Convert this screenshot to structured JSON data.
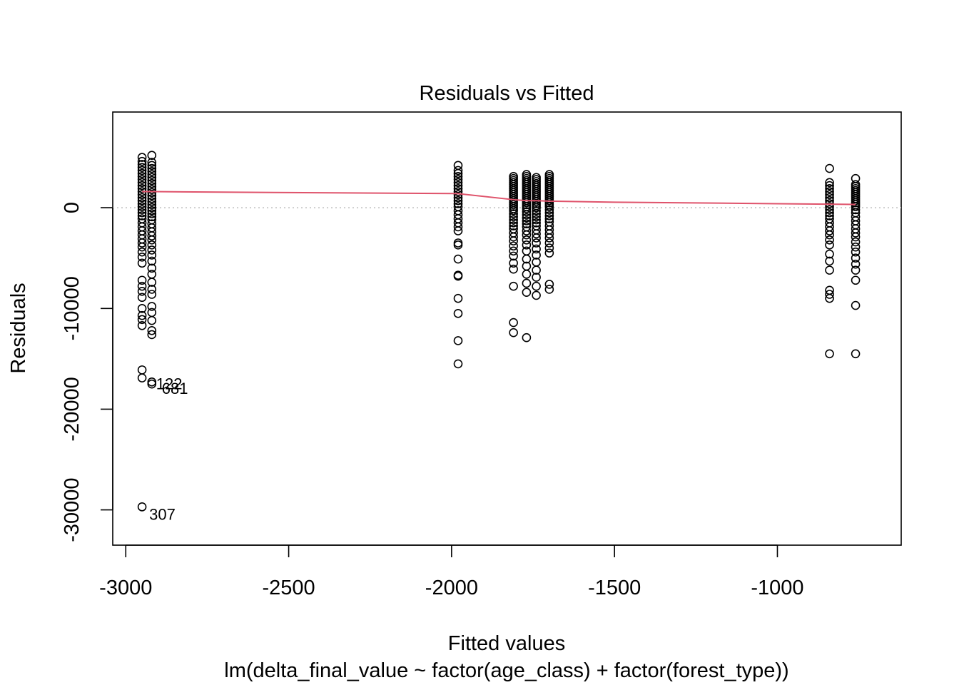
{
  "chart_data": {
    "type": "scatter",
    "title": "Residuals vs Fitted",
    "xlabel": "Fitted values",
    "ylabel": "Residuals",
    "subtitle": "lm(delta_final_value ~ factor(age_class) + factor(forest_type))",
    "xlim": [
      -3040,
      -620
    ],
    "ylim": [
      -33500,
      9500
    ],
    "x_ticks": [
      -3000,
      -2500,
      -2000,
      -1500,
      -1000
    ],
    "x_tick_labels": [
      "-3000",
      "-2500",
      "-2000",
      "-1500",
      "-1000"
    ],
    "y_ticks": [
      -30000,
      -20000,
      -10000,
      0
    ],
    "y_tick_labels": [
      "-30000",
      "-20000",
      "-10000",
      "0"
    ],
    "reference_line": {
      "y": 0,
      "style": "dotted",
      "color": "#bebebe"
    },
    "smoother_color": "#df536b",
    "point_color": "#000000",
    "smoother": [
      {
        "x": -2950,
        "y": 1600
      },
      {
        "x": -2920,
        "y": 1600
      },
      {
        "x": -2500,
        "y": 1500
      },
      {
        "x": -1980,
        "y": 1400
      },
      {
        "x": -1810,
        "y": 800
      },
      {
        "x": -1770,
        "y": 700
      },
      {
        "x": -1740,
        "y": 700
      },
      {
        "x": -1700,
        "y": 650
      },
      {
        "x": -1500,
        "y": 550
      },
      {
        "x": -1000,
        "y": 400
      },
      {
        "x": -840,
        "y": 350
      },
      {
        "x": -760,
        "y": 330
      }
    ],
    "groups": [
      {
        "x": -2950,
        "y": [
          5000,
          4600,
          4300,
          4000,
          3700,
          3400,
          3100,
          2800,
          2500,
          2200,
          1900,
          1600,
          1300,
          1000,
          700,
          400,
          100,
          -200,
          -500,
          -800,
          -1100,
          -1500,
          -1900,
          -2300,
          -2700,
          -3100,
          -3500,
          -3900,
          -4400,
          -4900,
          -5500,
          -7200,
          -7800,
          -8300,
          -8900,
          -10000,
          -10700,
          -11100,
          -11700,
          -16100,
          -16900,
          -29700
        ]
      },
      {
        "x": -2920,
        "y": [
          5200,
          4500,
          4200,
          3900,
          3600,
          3300,
          3000,
          2700,
          2400,
          2100,
          1800,
          1500,
          1200,
          900,
          600,
          300,
          0,
          -300,
          -600,
          -900,
          -1200,
          -1600,
          -2000,
          -2400,
          -2800,
          -3200,
          -3700,
          -4200,
          -4700,
          -5300,
          -6000,
          -6600,
          -7400,
          -8100,
          -8600,
          -9800,
          -10400,
          -11200,
          -12200,
          -12600,
          -17300,
          -17500
        ]
      },
      {
        "x": -1980,
        "y": [
          4200,
          3700,
          3400,
          3100,
          2800,
          2500,
          2200,
          1900,
          1600,
          1300,
          1000,
          700,
          400,
          100,
          -300,
          -700,
          -1100,
          -1500,
          -1900,
          -2300,
          -3500,
          -3700,
          -5100,
          -6700,
          -6800,
          -9000,
          -10500,
          -13200,
          -15500
        ]
      },
      {
        "x": -1810,
        "y": [
          3100,
          2900,
          2700,
          2500,
          2300,
          2100,
          1900,
          1700,
          1500,
          1300,
          1100,
          900,
          700,
          500,
          300,
          100,
          -100,
          -300,
          -600,
          -900,
          -1200,
          -1500,
          -1800,
          -2100,
          -2500,
          -2900,
          -3300,
          -3800,
          -4300,
          -4800,
          -5500,
          -6100,
          -7800,
          -11400,
          -12400
        ]
      },
      {
        "x": -1770,
        "y": [
          3300,
          3100,
          2900,
          2700,
          2500,
          2300,
          2100,
          1900,
          1700,
          1500,
          1300,
          1100,
          900,
          700,
          500,
          300,
          100,
          -100,
          -400,
          -700,
          -1000,
          -1300,
          -1600,
          -1900,
          -2300,
          -2700,
          -3200,
          -3700,
          -4300,
          -5100,
          -5800,
          -6600,
          -7500,
          -8400,
          -12900
        ]
      },
      {
        "x": -1740,
        "y": [
          3000,
          2800,
          2600,
          2400,
          2200,
          2000,
          1800,
          1600,
          1400,
          1200,
          1000,
          800,
          600,
          400,
          200,
          0,
          -300,
          -600,
          -900,
          -1200,
          -1500,
          -1800,
          -2200,
          -2600,
          -3000,
          -3500,
          -4100,
          -4700,
          -5400,
          -6200,
          -6900,
          -7800,
          -8700
        ]
      },
      {
        "x": -1700,
        "y": [
          3300,
          3100,
          2900,
          2700,
          2500,
          2300,
          2100,
          1900,
          1700,
          1500,
          1300,
          1100,
          900,
          700,
          500,
          300,
          100,
          -200,
          -500,
          -800,
          -1100,
          -1400,
          -1800,
          -2200,
          -2600,
          -3000,
          -3500,
          -4000,
          -4500,
          -7600,
          -8100
        ]
      },
      {
        "x": -840,
        "y": [
          3900,
          2500,
          2200,
          1900,
          1600,
          1300,
          1000,
          700,
          400,
          100,
          -200,
          -500,
          -800,
          -1100,
          -1500,
          -1900,
          -2300,
          -2700,
          -3200,
          -3700,
          -4600,
          -5300,
          -6200,
          -8200,
          -8600,
          -9000,
          -14500
        ]
      },
      {
        "x": -760,
        "y": [
          2900,
          2300,
          2100,
          1900,
          1700,
          1500,
          1300,
          1100,
          900,
          700,
          500,
          300,
          100,
          -200,
          -500,
          -900,
          -1300,
          -1700,
          -2100,
          -2500,
          -2900,
          -3400,
          -3900,
          -4400,
          -5000,
          -5600,
          -6200,
          -7200,
          -9700,
          -14500
        ]
      }
    ],
    "point_labels": [
      {
        "text": "307",
        "x": -2950,
        "y": -29700
      },
      {
        "text": "122",
        "x": -2920,
        "y": -17300
      },
      {
        "text": "681",
        "x": -2920,
        "y": -17500
      }
    ]
  }
}
